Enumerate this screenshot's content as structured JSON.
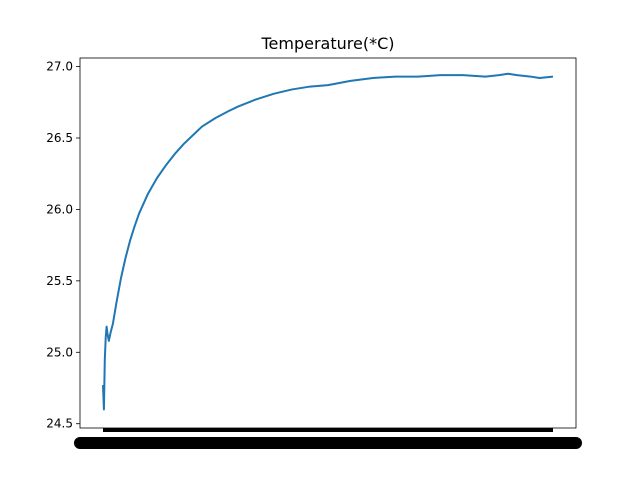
{
  "chart_data": {
    "type": "line",
    "title": "Temperature(*C)",
    "xlabel": "",
    "ylabel": "",
    "ylim": [
      24.47,
      27.06
    ],
    "y_ticks": [
      24.5,
      25.0,
      25.5,
      26.0,
      26.5,
      27.0
    ],
    "y_tick_labels": [
      "24.5",
      "25.0",
      "25.5",
      "26.0",
      "26.5",
      "27.0"
    ],
    "x_tick_labels_note": "dense overlapping tick labels (illegible)",
    "grid": false,
    "legend": "none",
    "series": [
      {
        "color": "#1f77b4",
        "x": [
          0,
          0.2,
          0.4,
          0.6,
          0.8,
          1.0,
          1.3,
          1.7,
          2.2,
          3,
          4,
          5,
          6,
          7,
          8,
          10,
          12,
          14,
          16,
          18,
          20,
          22,
          25,
          28,
          30,
          34,
          38,
          42,
          46,
          50,
          55,
          60,
          65,
          70,
          75,
          80,
          85,
          88,
          90,
          92,
          95,
          97,
          100
        ],
        "y": [
          24.77,
          24.6,
          24.95,
          25.1,
          25.18,
          25.13,
          25.08,
          25.14,
          25.2,
          25.35,
          25.52,
          25.66,
          25.78,
          25.88,
          25.97,
          26.11,
          26.22,
          26.31,
          26.39,
          26.46,
          26.52,
          26.58,
          26.64,
          26.69,
          26.72,
          26.77,
          26.81,
          26.84,
          26.86,
          26.87,
          26.9,
          26.92,
          26.93,
          26.93,
          26.94,
          26.94,
          26.93,
          26.94,
          26.95,
          26.94,
          26.93,
          26.92,
          26.93
        ]
      }
    ]
  }
}
